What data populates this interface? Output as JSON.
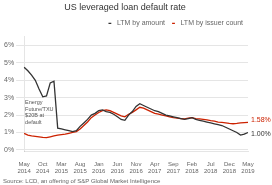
{
  "chart_data": {
    "type": "line",
    "title": "US leveraged loan default rate",
    "source": "Source: LCD, an offering of S&P Global Market Intelligence",
    "annotation": "Energy\nFuture/TXU\n$20B at\ndefault",
    "categories": [
      "May\n2014",
      null,
      null,
      null,
      null,
      "Oct\n2014",
      null,
      null,
      null,
      null,
      "Mar\n2015",
      null,
      null,
      null,
      null,
      "Aug\n2015",
      null,
      null,
      null,
      null,
      "Jan\n2016",
      null,
      null,
      null,
      null,
      "Jun\n2016",
      null,
      null,
      null,
      null,
      "Nov\n2016",
      null,
      null,
      null,
      null,
      "Apr\n2017",
      null,
      null,
      null,
      null,
      "Sep\n2017",
      null,
      null,
      null,
      null,
      "Feb\n2018",
      null,
      null,
      null,
      null,
      "Jul\n2018",
      null,
      null,
      null,
      null,
      "Dec\n2018",
      null,
      null,
      null,
      null,
      "May\n2019"
    ],
    "series": [
      {
        "name": "LTM by amount",
        "color": "#333333",
        "end_label": "1.00%",
        "values": [
          4.75,
          4.55,
          4.3,
          4.0,
          3.5,
          3.05,
          3.1,
          3.85,
          3.95,
          1.25,
          1.2,
          1.15,
          1.1,
          1.05,
          1.1,
          1.35,
          1.55,
          1.75,
          2.0,
          2.1,
          2.25,
          2.3,
          2.2,
          2.15,
          2.05,
          1.9,
          1.75,
          1.7,
          2.0,
          2.2,
          2.5,
          2.65,
          2.55,
          2.45,
          2.35,
          2.25,
          2.2,
          2.1,
          2.0,
          1.95,
          1.9,
          1.85,
          1.8,
          1.75,
          1.8,
          1.85,
          1.75,
          1.7,
          1.65,
          1.6,
          1.55,
          1.5,
          1.45,
          1.4,
          1.3,
          1.2,
          1.1,
          1.0,
          0.85,
          0.9,
          1.0
        ]
      },
      {
        "name": "LTM by issuer count",
        "color": "#cc2200",
        "end_label": "1.58%",
        "values": [
          0.95,
          0.85,
          0.8,
          0.78,
          0.75,
          0.72,
          0.7,
          0.75,
          0.8,
          0.85,
          0.88,
          0.9,
          0.95,
          1.0,
          1.05,
          1.2,
          1.4,
          1.6,
          1.85,
          2.0,
          2.15,
          2.25,
          2.3,
          2.25,
          2.15,
          2.05,
          1.95,
          1.9,
          2.05,
          2.15,
          2.3,
          2.45,
          2.4,
          2.3,
          2.2,
          2.1,
          2.05,
          2.0,
          1.95,
          1.9,
          1.85,
          1.82,
          1.8,
          1.78,
          1.82,
          1.85,
          1.8,
          1.78,
          1.75,
          1.72,
          1.68,
          1.65,
          1.6,
          1.58,
          1.55,
          1.52,
          1.5,
          1.52,
          1.55,
          1.57,
          1.58
        ]
      }
    ],
    "ylim": [
      -0.1,
      6.5
    ],
    "yticks": [
      {
        "value": 0,
        "label": "0%"
      },
      {
        "value": 1,
        "label": "1%"
      },
      {
        "value": 2,
        "label": "2%"
      },
      {
        "value": 3,
        "label": "3%"
      },
      {
        "value": 4,
        "label": "4%"
      },
      {
        "value": 5,
        "label": "5%"
      },
      {
        "value": 6,
        "label": "6%"
      }
    ],
    "grid": true,
    "legend": "upper right"
  }
}
